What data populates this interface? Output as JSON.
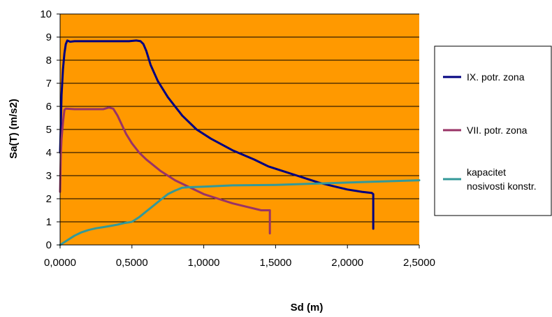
{
  "chart_data": {
    "type": "line",
    "title": "",
    "xlabel": "Sd (m)",
    "ylabel": "Sa(T) (m/s2)",
    "xlim": [
      0,
      2.5
    ],
    "ylim": [
      0,
      10
    ],
    "x_ticks": [
      "0,0000",
      "0,5000",
      "1,0000",
      "1,5000",
      "2,0000",
      "2,5000"
    ],
    "y_ticks": [
      "0",
      "1",
      "2",
      "3",
      "4",
      "5",
      "6",
      "7",
      "8",
      "9",
      "10"
    ],
    "grid": "horizontal",
    "plot_background": "#FF9900",
    "legend_position": "right",
    "series": [
      {
        "name": "IX. potr. zona",
        "color": "#000080",
        "points": [
          [
            0.0,
            4.0
          ],
          [
            0.01,
            6.5
          ],
          [
            0.02,
            7.6
          ],
          [
            0.03,
            8.3
          ],
          [
            0.04,
            8.7
          ],
          [
            0.05,
            8.85
          ],
          [
            0.07,
            8.8
          ],
          [
            0.1,
            8.82
          ],
          [
            0.3,
            8.82
          ],
          [
            0.48,
            8.82
          ],
          [
            0.53,
            8.85
          ],
          [
            0.56,
            8.82
          ],
          [
            0.58,
            8.7
          ],
          [
            0.6,
            8.4
          ],
          [
            0.63,
            7.8
          ],
          [
            0.68,
            7.1
          ],
          [
            0.75,
            6.4
          ],
          [
            0.85,
            5.6
          ],
          [
            0.95,
            5.0
          ],
          [
            1.05,
            4.6
          ],
          [
            1.2,
            4.1
          ],
          [
            1.35,
            3.7
          ],
          [
            1.45,
            3.4
          ],
          [
            1.55,
            3.2
          ],
          [
            1.65,
            3.0
          ],
          [
            1.8,
            2.7
          ],
          [
            1.9,
            2.55
          ],
          [
            2.0,
            2.4
          ],
          [
            2.1,
            2.3
          ],
          [
            2.17,
            2.25
          ],
          [
            2.18,
            2.2
          ],
          [
            2.18,
            0.7
          ]
        ]
      },
      {
        "name": "VII. potr. zona",
        "color": "#993366",
        "points": [
          [
            0.0,
            2.3
          ],
          [
            0.005,
            3.9
          ],
          [
            0.01,
            4.6
          ],
          [
            0.02,
            5.3
          ],
          [
            0.03,
            5.85
          ],
          [
            0.04,
            5.9
          ],
          [
            0.1,
            5.88
          ],
          [
            0.3,
            5.88
          ],
          [
            0.34,
            5.95
          ],
          [
            0.37,
            5.9
          ],
          [
            0.4,
            5.6
          ],
          [
            0.43,
            5.2
          ],
          [
            0.46,
            4.8
          ],
          [
            0.5,
            4.4
          ],
          [
            0.55,
            4.0
          ],
          [
            0.6,
            3.7
          ],
          [
            0.7,
            3.2
          ],
          [
            0.8,
            2.8
          ],
          [
            0.9,
            2.5
          ],
          [
            1.0,
            2.2
          ],
          [
            1.1,
            2.0
          ],
          [
            1.2,
            1.8
          ],
          [
            1.3,
            1.65
          ],
          [
            1.4,
            1.5
          ],
          [
            1.46,
            1.5
          ],
          [
            1.46,
            0.5
          ]
        ]
      },
      {
        "name": "kapacitet\nnosivosti konstr.",
        "color": "#339999",
        "points": [
          [
            0.0,
            0.0
          ],
          [
            0.05,
            0.2
          ],
          [
            0.1,
            0.4
          ],
          [
            0.15,
            0.55
          ],
          [
            0.2,
            0.65
          ],
          [
            0.25,
            0.72
          ],
          [
            0.3,
            0.77
          ],
          [
            0.35,
            0.82
          ],
          [
            0.4,
            0.88
          ],
          [
            0.45,
            0.95
          ],
          [
            0.5,
            1.0
          ],
          [
            0.55,
            1.2
          ],
          [
            0.6,
            1.45
          ],
          [
            0.65,
            1.7
          ],
          [
            0.7,
            1.95
          ],
          [
            0.75,
            2.2
          ],
          [
            0.8,
            2.35
          ],
          [
            0.85,
            2.48
          ],
          [
            0.9,
            2.5
          ],
          [
            1.0,
            2.52
          ],
          [
            1.2,
            2.58
          ],
          [
            1.5,
            2.6
          ],
          [
            2.0,
            2.7
          ],
          [
            2.5,
            2.8
          ]
        ]
      }
    ]
  }
}
